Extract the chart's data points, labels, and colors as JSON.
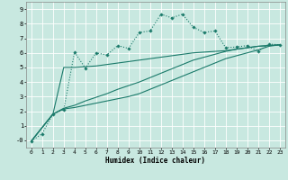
{
  "xlabel": "Humidex (Indice chaleur)",
  "xlim": [
    -0.5,
    23.5
  ],
  "ylim": [
    -0.5,
    9.5
  ],
  "xticks": [
    0,
    1,
    2,
    3,
    4,
    5,
    6,
    7,
    8,
    9,
    10,
    11,
    12,
    13,
    14,
    15,
    16,
    17,
    18,
    19,
    20,
    21,
    22,
    23
  ],
  "yticks": [
    0,
    1,
    2,
    3,
    4,
    5,
    6,
    7,
    8,
    9
  ],
  "ytick_labels": [
    "-0",
    "1",
    "2",
    "3",
    "4",
    "5",
    "6",
    "7",
    "8",
    "9"
  ],
  "bg_color": "#c8e8e0",
  "grid_color": "#ffffff",
  "line_color": "#1a7a6a",
  "line1_x": [
    0,
    1,
    2,
    3,
    4,
    5,
    6,
    7,
    8,
    9,
    10,
    11,
    12,
    13,
    14,
    15,
    16,
    17,
    18,
    19,
    20,
    21,
    22,
    23
  ],
  "line1_y": [
    -0.05,
    0.45,
    1.8,
    2.1,
    6.05,
    4.95,
    6.0,
    5.85,
    6.5,
    6.3,
    7.4,
    7.5,
    8.65,
    8.4,
    8.65,
    7.75,
    7.4,
    7.5,
    6.35,
    6.4,
    6.5,
    6.1,
    6.6,
    6.55
  ],
  "line2_x": [
    0,
    2,
    3,
    4,
    5,
    6,
    7,
    8,
    9,
    10,
    11,
    12,
    13,
    14,
    15,
    16,
    17,
    18,
    19,
    20,
    21,
    22,
    23
  ],
  "line2_y": [
    -0.05,
    1.8,
    2.15,
    2.25,
    2.4,
    2.55,
    2.7,
    2.85,
    3.0,
    3.2,
    3.5,
    3.8,
    4.1,
    4.4,
    4.7,
    5.0,
    5.3,
    5.6,
    5.8,
    6.0,
    6.2,
    6.45,
    6.55
  ],
  "line3_x": [
    0,
    2,
    3,
    4,
    5,
    6,
    7,
    8,
    9,
    10,
    11,
    12,
    13,
    14,
    15,
    16,
    17,
    18,
    19,
    20,
    21,
    22,
    23
  ],
  "line3_y": [
    -0.05,
    1.8,
    2.2,
    2.4,
    2.7,
    2.95,
    3.2,
    3.5,
    3.75,
    4.0,
    4.3,
    4.6,
    4.9,
    5.2,
    5.5,
    5.7,
    5.9,
    6.1,
    6.25,
    6.35,
    6.45,
    6.5,
    6.55
  ],
  "line4_x": [
    0,
    2,
    3,
    4,
    5,
    6,
    7,
    8,
    9,
    10,
    11,
    12,
    13,
    14,
    15,
    16,
    17,
    18,
    19,
    20,
    21,
    22,
    23
  ],
  "line4_y": [
    -0.05,
    1.8,
    5.0,
    5.0,
    5.05,
    5.1,
    5.2,
    5.3,
    5.4,
    5.5,
    5.6,
    5.7,
    5.8,
    5.9,
    6.0,
    6.05,
    6.1,
    6.15,
    6.25,
    6.35,
    6.45,
    6.5,
    6.55
  ]
}
